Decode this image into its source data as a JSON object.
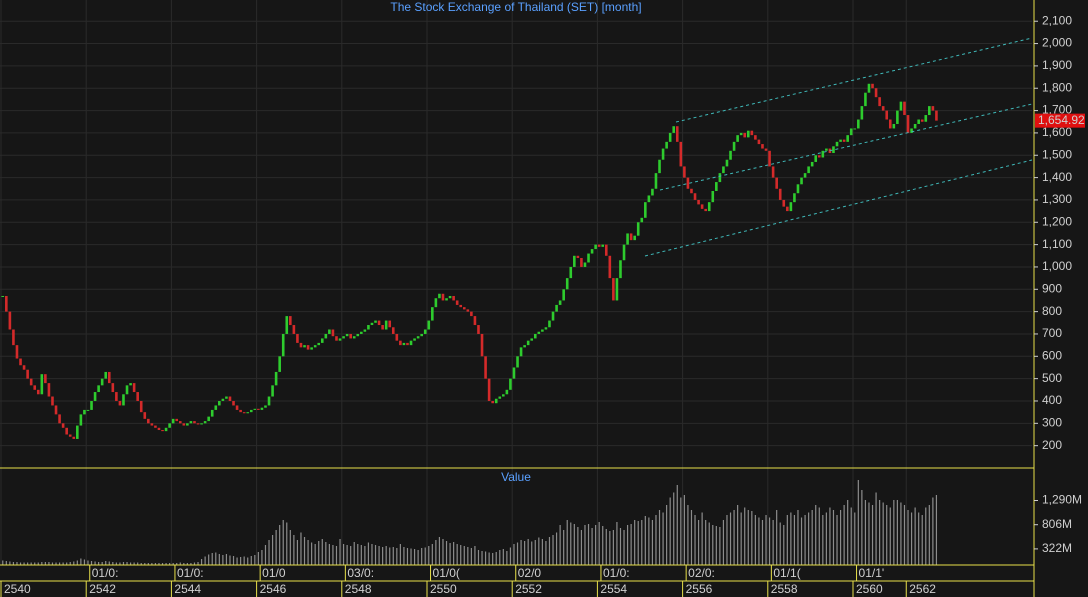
{
  "chart_data": [
    {
      "type": "candlestick",
      "title": "The Stock Exchange of Thailand (SET) [month]",
      "up_color": "#2ecc2e",
      "down_color": "#d42a2a",
      "ylim": [
        100,
        2195
      ],
      "yticks": [
        200,
        300,
        400,
        500,
        600,
        700,
        800,
        900,
        {
          "value": 1000,
          "label": "1,000"
        },
        {
          "value": 1100,
          "label": "1,100"
        },
        {
          "value": 1200,
          "label": "1,200"
        },
        {
          "value": 1300,
          "label": "1,300"
        },
        {
          "value": 1400,
          "label": "1,400"
        },
        {
          "value": 1500,
          "label": "1,500"
        },
        {
          "value": 1600,
          "label": "1,600"
        },
        {
          "value": 1700,
          "label": "1,700"
        },
        {
          "value": 1800,
          "label": "1,800"
        },
        {
          "value": 1900,
          "label": "1,900"
        },
        {
          "value": 2000,
          "label": "2,000"
        },
        {
          "value": 2100,
          "label": "2,100"
        }
      ],
      "grid": true,
      "last_price": {
        "value": 1654.92,
        "label": "1,654.92"
      },
      "close": [
        870,
        800,
        720,
        650,
        590,
        560,
        540,
        500,
        470,
        450,
        430,
        520,
        480,
        420,
        380,
        340,
        300,
        280,
        250,
        240,
        230,
        290,
        340,
        360,
        360,
        400,
        440,
        470,
        500,
        530,
        480,
        440,
        400,
        380,
        430,
        470,
        480,
        440,
        400,
        350,
        320,
        300,
        290,
        280,
        270,
        265,
        280,
        300,
        320,
        310,
        300,
        290,
        300,
        310,
        300,
        295,
        300,
        310,
        330,
        360,
        380,
        400,
        410,
        420,
        400,
        380,
        360,
        350,
        345,
        350,
        360,
        365,
        360,
        370,
        380,
        420,
        470,
        530,
        600,
        700,
        780,
        740,
        700,
        660,
        640,
        650,
        630,
        640,
        650,
        660,
        680,
        700,
        720,
        690,
        670,
        680,
        690,
        700,
        680,
        690,
        700,
        710,
        720,
        740,
        750,
        760,
        740,
        720,
        760,
        730,
        700,
        670,
        650,
        660,
        650,
        670,
        680,
        690,
        700,
        720,
        760,
        820,
        860,
        880,
        850,
        860,
        870,
        850,
        830,
        820,
        810,
        800,
        780,
        740,
        700,
        600,
        500,
        400,
        390,
        410,
        420,
        430,
        450,
        500,
        550,
        600,
        640,
        650,
        670,
        680,
        700,
        710,
        720,
        730,
        760,
        800,
        830,
        850,
        900,
        950,
        1000,
        1050,
        1040,
        1000,
        1020,
        1060,
        1080,
        1100,
        1090,
        1100,
        1050,
        950,
        850,
        950,
        1030,
        1100,
        1150,
        1120,
        1140,
        1200,
        1220,
        1290,
        1320,
        1350,
        1420,
        1480,
        1530,
        1560,
        1600,
        1630,
        1560,
        1450,
        1400,
        1350,
        1330,
        1300,
        1280,
        1260,
        1250,
        1290,
        1340,
        1380,
        1420,
        1450,
        1480,
        1520,
        1560,
        1590,
        1600,
        1580,
        1610,
        1590,
        1570,
        1550,
        1530,
        1520,
        1450,
        1400,
        1350,
        1300,
        1270,
        1250,
        1290,
        1330,
        1370,
        1400,
        1420,
        1450,
        1470,
        1500,
        1490,
        1520,
        1530,
        1510,
        1540,
        1560,
        1570,
        1560,
        1590,
        1620,
        1620,
        1660,
        1720,
        1780,
        1820,
        1800,
        1760,
        1720,
        1700,
        1660,
        1620,
        1640,
        1700,
        1740,
        1680,
        1600,
        1620,
        1640,
        1660,
        1650,
        1680,
        1720,
        1700,
        1655
      ]
    },
    {
      "type": "bar",
      "title": "Value",
      "color": "#8c8c8c",
      "ylim": [
        0,
        1900
      ],
      "yticks": [
        {
          "value": 322,
          "label": "322M"
        },
        {
          "value": 806,
          "label": "806M"
        },
        {
          "value": 1290,
          "label": "1,290M"
        }
      ],
      "values": [
        90,
        80,
        70,
        60,
        60,
        50,
        50,
        50,
        50,
        50,
        50,
        60,
        60,
        60,
        50,
        50,
        50,
        50,
        50,
        60,
        70,
        90,
        130,
        110,
        90,
        80,
        70,
        60,
        60,
        80,
        70,
        60,
        50,
        50,
        60,
        60,
        50,
        50,
        50,
        40,
        40,
        40,
        40,
        40,
        40,
        40,
        40,
        40,
        40,
        40,
        50,
        40,
        40,
        40,
        50,
        60,
        120,
        170,
        210,
        240,
        250,
        220,
        200,
        220,
        190,
        180,
        150,
        160,
        170,
        150,
        180,
        200,
        260,
        300,
        400,
        500,
        600,
        700,
        800,
        900,
        850,
        700,
        600,
        500,
        650,
        560,
        500,
        450,
        420,
        480,
        520,
        460,
        420,
        400,
        380,
        520,
        420,
        400,
        380,
        460,
        420,
        400,
        380,
        450,
        420,
        400,
        380,
        360,
        380,
        350,
        360,
        340,
        420,
        360,
        340,
        330,
        320,
        300,
        340,
        350,
        380,
        420,
        500,
        560,
        520,
        480,
        440,
        460,
        420,
        400,
        380,
        360,
        340,
        380,
        300,
        280,
        270,
        250,
        240,
        260,
        300,
        320,
        280,
        350,
        420,
        450,
        500,
        480,
        520,
        470,
        500,
        550,
        520,
        480,
        560,
        600,
        650,
        800,
        700,
        900,
        850,
        820,
        760,
        700,
        800,
        820,
        740,
        800,
        860,
        780,
        720,
        680,
        700,
        860,
        740,
        700,
        800,
        820,
        900,
        880,
        900,
        980,
        950,
        900,
        1000,
        1100,
        1050,
        1200,
        1350,
        1450,
        1600,
        1350,
        1400,
        1200,
        1100,
        1000,
        900,
        1050,
        900,
        850,
        800,
        780,
        760,
        900,
        1000,
        1050,
        1100,
        1200,
        1050,
        1150,
        1100,
        1080,
        1000,
        950,
        900,
        1000,
        950,
        900,
        1100,
        850,
        800,
        1000,
        1050,
        1000,
        1100,
        950,
        1000,
        1050,
        1100,
        1200,
        1150,
        1000,
        1050,
        1150,
        1100,
        1000,
        1100,
        1200,
        1300,
        1150,
        1050,
        1700,
        1500,
        1300,
        1250,
        1200,
        1450,
        1300,
        1250,
        1200,
        1150,
        1300,
        1300,
        1250,
        1200,
        1100,
        1050,
        1150,
        1050,
        1000,
        1150,
        1200,
        1350,
        1400
      ],
      "xticks": [
        {
          "value": 0,
          "label": "2540"
        },
        {
          "value": 24,
          "label": "2542"
        },
        {
          "value": 48,
          "label": "2544"
        },
        {
          "value": 72,
          "label": "2546"
        },
        {
          "value": 96,
          "label": "2548"
        },
        {
          "value": 120,
          "label": "2550"
        },
        {
          "value": 144,
          "label": "2552"
        },
        {
          "value": 168,
          "label": "2554"
        },
        {
          "value": 192,
          "label": "2556"
        },
        {
          "value": 216,
          "label": "2558"
        },
        {
          "value": 240,
          "label": "2560"
        },
        {
          "value": 255,
          "label": "2562"
        }
      ],
      "x2ticks": [
        {
          "value": 25,
          "label": "01/0:"
        },
        {
          "value": 49,
          "label": "01/0:"
        },
        {
          "value": 73,
          "label": "01/0"
        },
        {
          "value": 97,
          "label": "03/0:"
        },
        {
          "value": 121,
          "label": "01/0("
        },
        {
          "value": 145,
          "label": "02/0"
        },
        {
          "value": 169,
          "label": "01/0:"
        },
        {
          "value": 193,
          "label": "02/0:"
        },
        {
          "value": 217,
          "label": "01/1("
        },
        {
          "value": 241,
          "label": "01/1'"
        }
      ]
    }
  ]
}
